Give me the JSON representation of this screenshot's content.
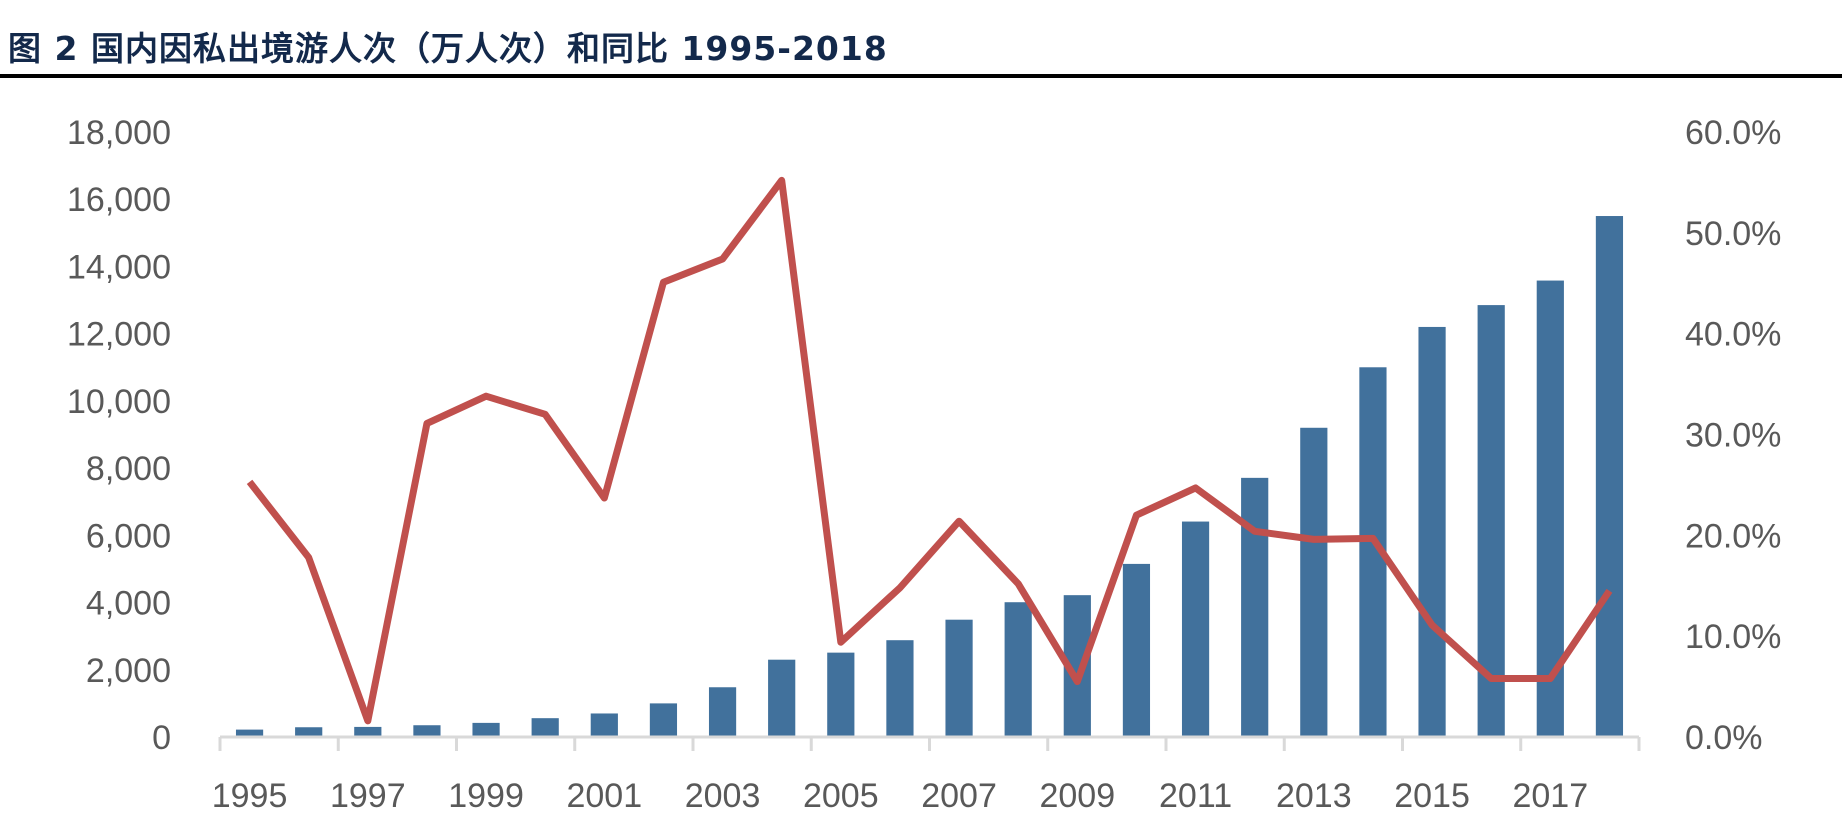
{
  "title": "图 2  国内因私出境游人次（万人次）和同比 1995-2018",
  "colors": {
    "bar": "#41719C",
    "line": "#C0504D",
    "axis": "#D9D9D9",
    "tick_text": "#595959",
    "title": "#13294B"
  },
  "chart_data": {
    "type": "bar+line",
    "title": "图 2  国内因私出境游人次（万人次）和同比 1995-2018",
    "categories": [
      "1995",
      "1996",
      "1997",
      "1998",
      "1999",
      "2000",
      "2001",
      "2002",
      "2003",
      "2004",
      "2005",
      "2006",
      "2007",
      "2008",
      "2009",
      "2010",
      "2011",
      "2012",
      "2013",
      "2014",
      "2015",
      "2016",
      "2017",
      "2018"
    ],
    "x_tick_labels": [
      "1995",
      "1997",
      "1999",
      "2001",
      "2003",
      "2005",
      "2007",
      "2009",
      "2011",
      "2013",
      "2015",
      "2017"
    ],
    "series": [
      {
        "type": "bar",
        "axis": "left",
        "values": [
          220,
          290,
          300,
          350,
          420,
          560,
          700,
          1000,
          1480,
          2300,
          2510,
          2880,
          3490,
          4010,
          4220,
          5150,
          6410,
          7710,
          9200,
          11000,
          12200,
          12850,
          13580,
          15500
        ]
      },
      {
        "type": "line",
        "axis": "right",
        "values": [
          25.3,
          17.8,
          1.6,
          31.1,
          33.8,
          32.0,
          23.7,
          45.1,
          47.4,
          55.2,
          9.4,
          14.8,
          21.4,
          15.2,
          5.5,
          22.0,
          24.7,
          20.4,
          19.6,
          19.7,
          11.1,
          5.8,
          5.8,
          14.5
        ]
      }
    ],
    "y_left": {
      "range": [
        0,
        18000
      ],
      "tick_labels": [
        "0",
        "2,000",
        "4,000",
        "6,000",
        "8,000",
        "10,000",
        "12,000",
        "14,000",
        "16,000",
        "18,000"
      ]
    },
    "y_right": {
      "range": [
        0,
        60
      ],
      "unit": "%",
      "tick_labels": [
        "0.0%",
        "10.0%",
        "20.0%",
        "30.0%",
        "40.0%",
        "50.0%",
        "60.0%"
      ]
    },
    "grid": false,
    "legend": "none"
  }
}
